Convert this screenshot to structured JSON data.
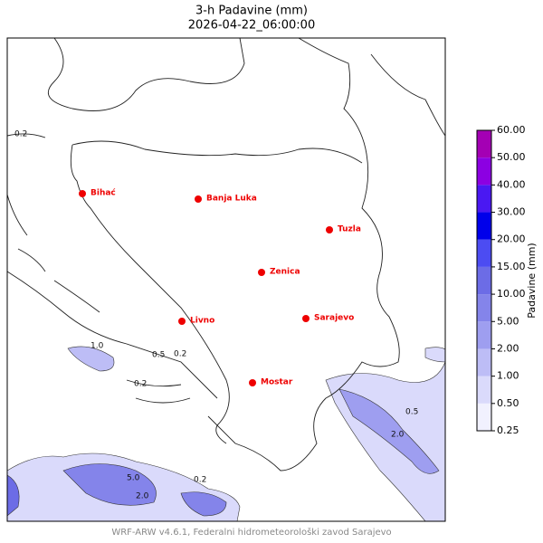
{
  "header": {
    "title": "3-h Padavine (mm)",
    "subtitle": "2026-04-22_06:00:00"
  },
  "cities": [
    "Bihać",
    "Banja Luka",
    "Tuzla",
    "Zenica",
    "Sarajevo",
    "Livno",
    "Mostar"
  ],
  "colorbar": {
    "label": "Padavine (mm)",
    "ticks": [
      {
        "value": 0.25,
        "label": "0.25"
      },
      {
        "value": 0.5,
        "label": "0.50"
      },
      {
        "value": 1,
        "label": "1.00"
      },
      {
        "value": 2,
        "label": "2.00"
      },
      {
        "value": 5,
        "label": "5.00"
      },
      {
        "value": 10,
        "label": "10.00"
      },
      {
        "value": 15,
        "label": "15.00"
      },
      {
        "value": 20,
        "label": "20.00"
      },
      {
        "value": 30,
        "label": "30.00"
      },
      {
        "value": 40,
        "label": "40.00"
      },
      {
        "value": 50,
        "label": "50.00"
      },
      {
        "value": 60,
        "label": "60.00"
      }
    ],
    "colors": [
      "#f1f1fe",
      "#dadafb",
      "#bdbdf6",
      "#9e9ef0",
      "#8484ea",
      "#6c6ce6",
      "#4c4cf2",
      "#0000ea",
      "#4a18f2",
      "#8c00e2",
      "#a400b4"
    ]
  },
  "contour_labels": [
    "0.2",
    "0.2",
    "0.5",
    "0.2",
    "0.2",
    "1.0",
    "2.0",
    "5.0",
    "0.5",
    "2.0"
  ],
  "footer": "WRF-ARW v4.6.1, Federalni hidrometeorološki zavod Sarajevo"
}
